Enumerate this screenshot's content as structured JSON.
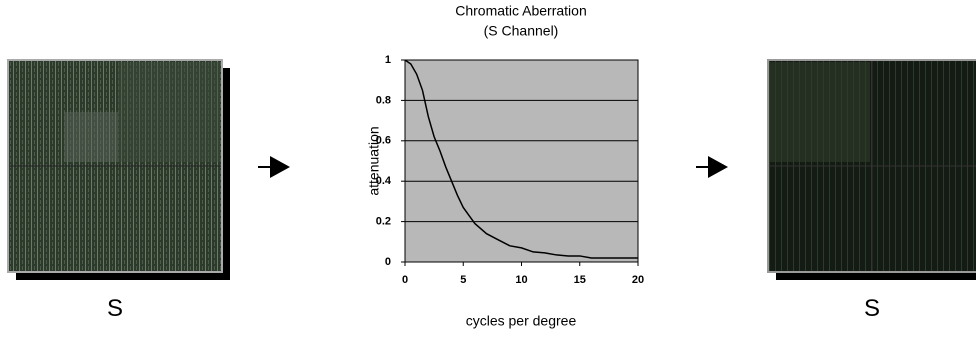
{
  "chart_data": {
    "type": "line",
    "title": "Chromatic Aberration",
    "subtitle": "(S Channel)",
    "x_label": "cycles per degree",
    "y_label": "attenuation",
    "x": [
      0,
      0.5,
      1,
      1.5,
      2,
      2.5,
      3,
      3.5,
      4,
      4.5,
      5,
      5.5,
      6,
      7,
      8,
      9,
      10,
      11,
      12,
      13,
      14,
      15,
      16,
      18,
      20
    ],
    "series": [
      {
        "color": "#000000",
        "values": [
          1.0,
          0.98,
          0.93,
          0.85,
          0.72,
          0.62,
          0.55,
          0.47,
          0.4,
          0.33,
          0.27,
          0.23,
          0.19,
          0.14,
          0.11,
          0.08,
          0.07,
          0.05,
          0.045,
          0.035,
          0.03,
          0.03,
          0.02,
          0.02,
          0.02
        ]
      }
    ],
    "xlim": [
      0,
      20
    ],
    "ylim": [
      0,
      1
    ],
    "xticks": [
      0,
      5,
      10,
      15,
      20
    ],
    "yticks": [
      0,
      0.2,
      0.4,
      0.6,
      0.8,
      1
    ],
    "grid": true
  },
  "panels": {
    "left_label": "S",
    "right_label": "S"
  }
}
